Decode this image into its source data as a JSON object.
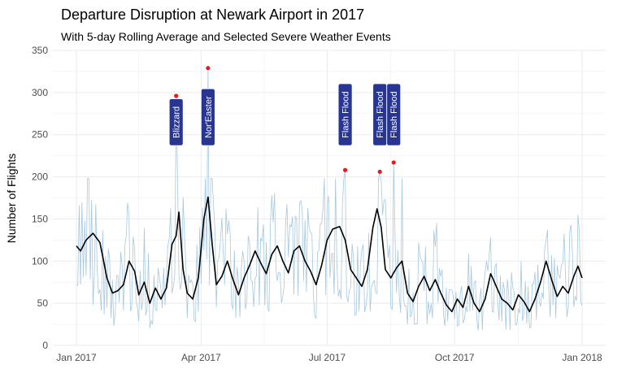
{
  "chart_data": {
    "type": "line",
    "title": "Departure Disruption at Newark Airport in 2017",
    "subtitle": "With 5-day Rolling Average and Selected Severe Weather Events",
    "xlabel": "",
    "ylabel": "Number of Flights",
    "ylim": [
      0,
      350
    ],
    "xlim": [
      "2016-12-15",
      "2018-01-18"
    ],
    "y_ticks": [
      0,
      50,
      100,
      150,
      200,
      250,
      300,
      350
    ],
    "x_ticks": [
      {
        "date": "2017-01-01",
        "label": "Jan 2017"
      },
      {
        "date": "2017-04-01",
        "label": "Apr 2017"
      },
      {
        "date": "2017-07-01",
        "label": "Jul 2017"
      },
      {
        "date": "2017-10-01",
        "label": "Oct 2017"
      },
      {
        "date": "2018-01-01",
        "label": "Jan 2018"
      }
    ],
    "grid": true,
    "colors": {
      "daily": "#a6c8e0",
      "rolling": "#000000",
      "event_point": "#e41a1c",
      "event_label_bg": "#283593",
      "grid": "#ebebeb"
    },
    "rolling_average": [
      [
        "2017-01-01",
        118
      ],
      [
        "2017-01-04",
        112
      ],
      [
        "2017-01-08",
        125
      ],
      [
        "2017-01-13",
        133
      ],
      [
        "2017-01-18",
        122
      ],
      [
        "2017-01-23",
        80
      ],
      [
        "2017-01-27",
        62
      ],
      [
        "2017-01-31",
        65
      ],
      [
        "2017-02-04",
        72
      ],
      [
        "2017-02-08",
        100
      ],
      [
        "2017-02-12",
        88
      ],
      [
        "2017-02-15",
        60
      ],
      [
        "2017-02-19",
        75
      ],
      [
        "2017-02-23",
        50
      ],
      [
        "2017-02-27",
        68
      ],
      [
        "2017-03-03",
        55
      ],
      [
        "2017-03-07",
        68
      ],
      [
        "2017-03-11",
        120
      ],
      [
        "2017-03-14",
        130
      ],
      [
        "2017-03-16",
        158
      ],
      [
        "2017-03-19",
        90
      ],
      [
        "2017-03-22",
        62
      ],
      [
        "2017-03-26",
        55
      ],
      [
        "2017-03-30",
        80
      ],
      [
        "2017-04-03",
        150
      ],
      [
        "2017-04-06",
        176
      ],
      [
        "2017-04-09",
        120
      ],
      [
        "2017-04-12",
        72
      ],
      [
        "2017-04-16",
        82
      ],
      [
        "2017-04-20",
        100
      ],
      [
        "2017-04-24",
        78
      ],
      [
        "2017-04-28",
        60
      ],
      [
        "2017-05-02",
        80
      ],
      [
        "2017-05-06",
        95
      ],
      [
        "2017-05-10",
        112
      ],
      [
        "2017-05-14",
        98
      ],
      [
        "2017-05-18",
        85
      ],
      [
        "2017-05-22",
        108
      ],
      [
        "2017-05-26",
        118
      ],
      [
        "2017-05-30",
        100
      ],
      [
        "2017-06-03",
        86
      ],
      [
        "2017-06-07",
        112
      ],
      [
        "2017-06-11",
        118
      ],
      [
        "2017-06-15",
        100
      ],
      [
        "2017-06-19",
        88
      ],
      [
        "2017-06-23",
        72
      ],
      [
        "2017-06-27",
        95
      ],
      [
        "2017-07-01",
        125
      ],
      [
        "2017-07-05",
        138
      ],
      [
        "2017-07-10",
        141
      ],
      [
        "2017-07-14",
        125
      ],
      [
        "2017-07-18",
        90
      ],
      [
        "2017-07-22",
        80
      ],
      [
        "2017-07-26",
        70
      ],
      [
        "2017-07-30",
        90
      ],
      [
        "2017-08-03",
        140
      ],
      [
        "2017-08-06",
        162
      ],
      [
        "2017-08-09",
        140
      ],
      [
        "2017-08-12",
        90
      ],
      [
        "2017-08-16",
        80
      ],
      [
        "2017-08-20",
        92
      ],
      [
        "2017-08-24",
        100
      ],
      [
        "2017-08-28",
        62
      ],
      [
        "2017-09-01",
        52
      ],
      [
        "2017-09-05",
        70
      ],
      [
        "2017-09-09",
        82
      ],
      [
        "2017-09-13",
        65
      ],
      [
        "2017-09-17",
        78
      ],
      [
        "2017-09-21",
        62
      ],
      [
        "2017-09-25",
        48
      ],
      [
        "2017-09-29",
        40
      ],
      [
        "2017-10-03",
        55
      ],
      [
        "2017-10-07",
        45
      ],
      [
        "2017-10-11",
        70
      ],
      [
        "2017-10-15",
        50
      ],
      [
        "2017-10-19",
        40
      ],
      [
        "2017-10-23",
        55
      ],
      [
        "2017-10-27",
        85
      ],
      [
        "2017-10-31",
        70
      ],
      [
        "2017-11-04",
        55
      ],
      [
        "2017-11-08",
        50
      ],
      [
        "2017-11-12",
        42
      ],
      [
        "2017-11-16",
        60
      ],
      [
        "2017-11-20",
        52
      ],
      [
        "2017-11-24",
        40
      ],
      [
        "2017-11-28",
        55
      ],
      [
        "2017-12-02",
        75
      ],
      [
        "2017-12-06",
        100
      ],
      [
        "2017-12-10",
        78
      ],
      [
        "2017-12-14",
        58
      ],
      [
        "2017-12-18",
        70
      ],
      [
        "2017-12-22",
        62
      ],
      [
        "2017-12-26",
        82
      ],
      [
        "2017-12-29",
        94
      ],
      [
        "2018-01-01",
        80
      ]
    ],
    "events": [
      {
        "date": "2017-03-14",
        "value": 296,
        "label": "Blizzard"
      },
      {
        "date": "2017-04-06",
        "value": 329,
        "label": "Nor'Easter"
      },
      {
        "date": "2017-07-14",
        "value": 208,
        "label": "Flash Flood"
      },
      {
        "date": "2017-08-08",
        "value": 206,
        "label": "Flash Flood"
      },
      {
        "date": "2017-08-18",
        "value": 217,
        "label": "Flash Flood"
      }
    ]
  }
}
